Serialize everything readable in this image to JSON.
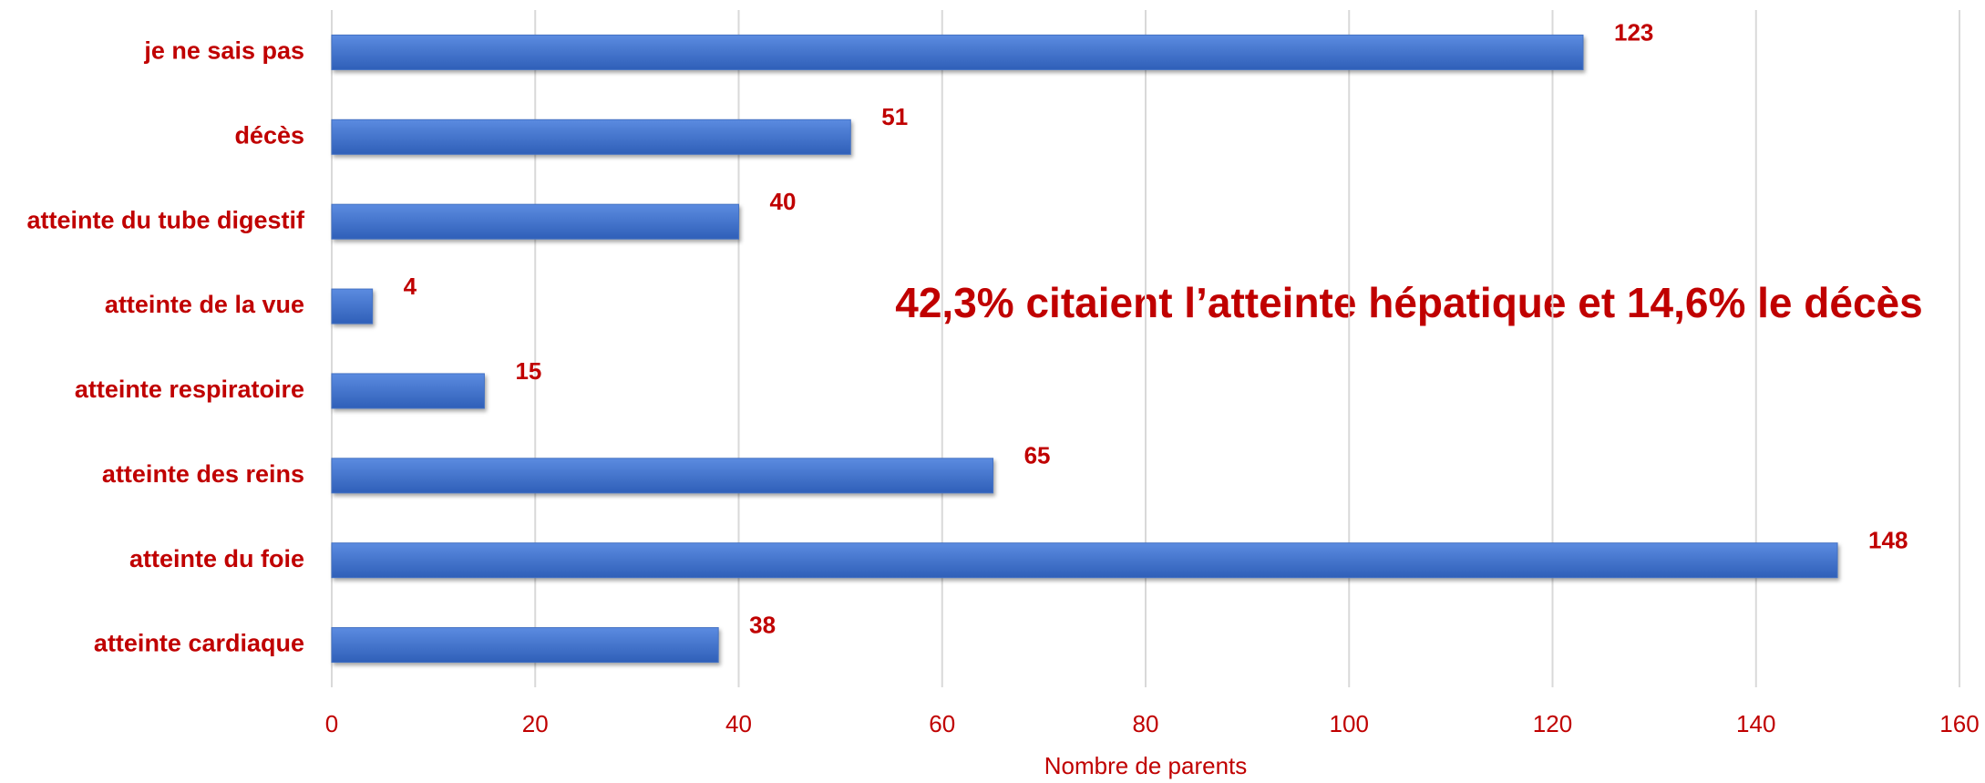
{
  "chart_data": {
    "type": "barh",
    "categories": [
      "je ne sais pas",
      "décès",
      "atteinte du tube digestif",
      "atteinte de la vue",
      "atteinte respiratoire",
      "atteinte des reins",
      "atteinte du foie",
      "atteinte cardiaque"
    ],
    "values": [
      123,
      51,
      40,
      4,
      15,
      65,
      148,
      38
    ],
    "color": "#4472c4",
    "xlabel": "Nombre de parents",
    "annotation": "42,3% citaient l’atteinte hépatique et 14,6% le décès",
    "xlim": [
      0,
      160
    ],
    "xticks": [
      0,
      20,
      40,
      60,
      80,
      100,
      120,
      140,
      160
    ],
    "grid": true
  }
}
